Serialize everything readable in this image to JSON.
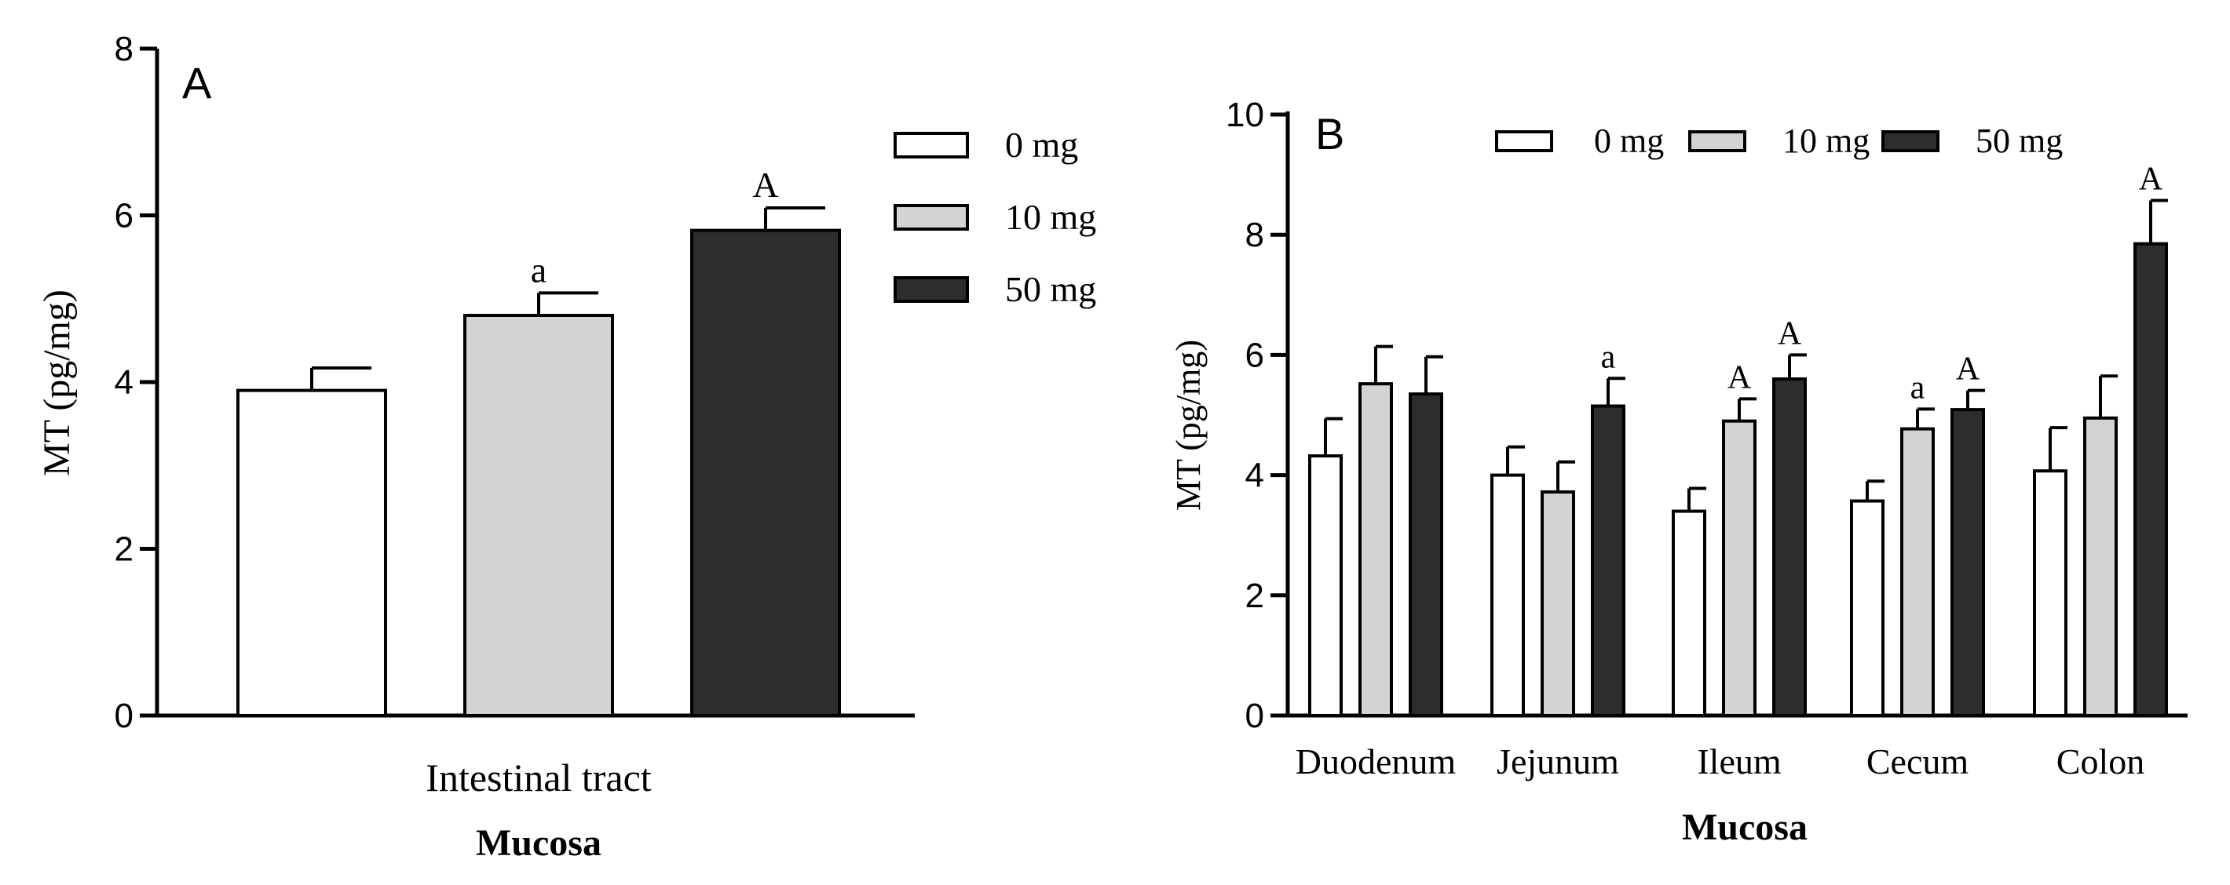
{
  "chart_data": [
    {
      "type": "bar",
      "panel_label": "A",
      "categories": [
        "Intestinal tract"
      ],
      "series": [
        {
          "name": "0 mg",
          "color": "#ffffff",
          "values": [
            3.9
          ],
          "errors": [
            0.27
          ],
          "annotations": [
            ""
          ]
        },
        {
          "name": "10 mg",
          "color": "#d3d3d3",
          "values": [
            4.8
          ],
          "errors": [
            0.27
          ],
          "annotations": [
            "a"
          ]
        },
        {
          "name": "50 mg",
          "color": "#2d2d2d",
          "values": [
            5.82
          ],
          "errors": [
            0.27
          ],
          "annotations": [
            "A"
          ]
        }
      ],
      "xlabel": "Mucosa",
      "ylabel": "MT (pg/mg)",
      "ylim": [
        0,
        8
      ],
      "yticks": [
        "0",
        "2",
        "4",
        "6",
        "8"
      ],
      "legend_position": "top-right"
    },
    {
      "type": "bar",
      "panel_label": "B",
      "categories": [
        "Duodenum",
        "Jejunum",
        "Ileum",
        "Cecum",
        "Colon"
      ],
      "series": [
        {
          "name": "0 mg",
          "color": "#ffffff",
          "values": [
            4.32,
            4.0,
            3.4,
            3.57,
            4.07
          ],
          "errors": [
            0.62,
            0.47,
            0.38,
            0.33,
            0.72
          ],
          "annotations": [
            "",
            "",
            "",
            "",
            ""
          ]
        },
        {
          "name": "10 mg",
          "color": "#d3d3d3",
          "values": [
            5.52,
            3.72,
            4.9,
            4.77,
            4.95
          ],
          "errors": [
            0.62,
            0.5,
            0.37,
            0.33,
            0.7
          ],
          "annotations": [
            "",
            "",
            "A",
            "a",
            ""
          ]
        },
        {
          "name": "50 mg",
          "color": "#2d2d2d",
          "values": [
            5.35,
            5.15,
            5.6,
            5.09,
            7.85
          ],
          "errors": [
            0.62,
            0.46,
            0.4,
            0.32,
            0.72
          ],
          "annotations": [
            "",
            "a",
            "A",
            "A",
            "A"
          ]
        }
      ],
      "xlabel": "Mucosa",
      "ylabel": "MT (pg/mg)",
      "ylim": [
        0,
        10
      ],
      "yticks": [
        "0",
        "2",
        "4",
        "6",
        "8",
        "10"
      ],
      "legend_position": "top"
    }
  ]
}
